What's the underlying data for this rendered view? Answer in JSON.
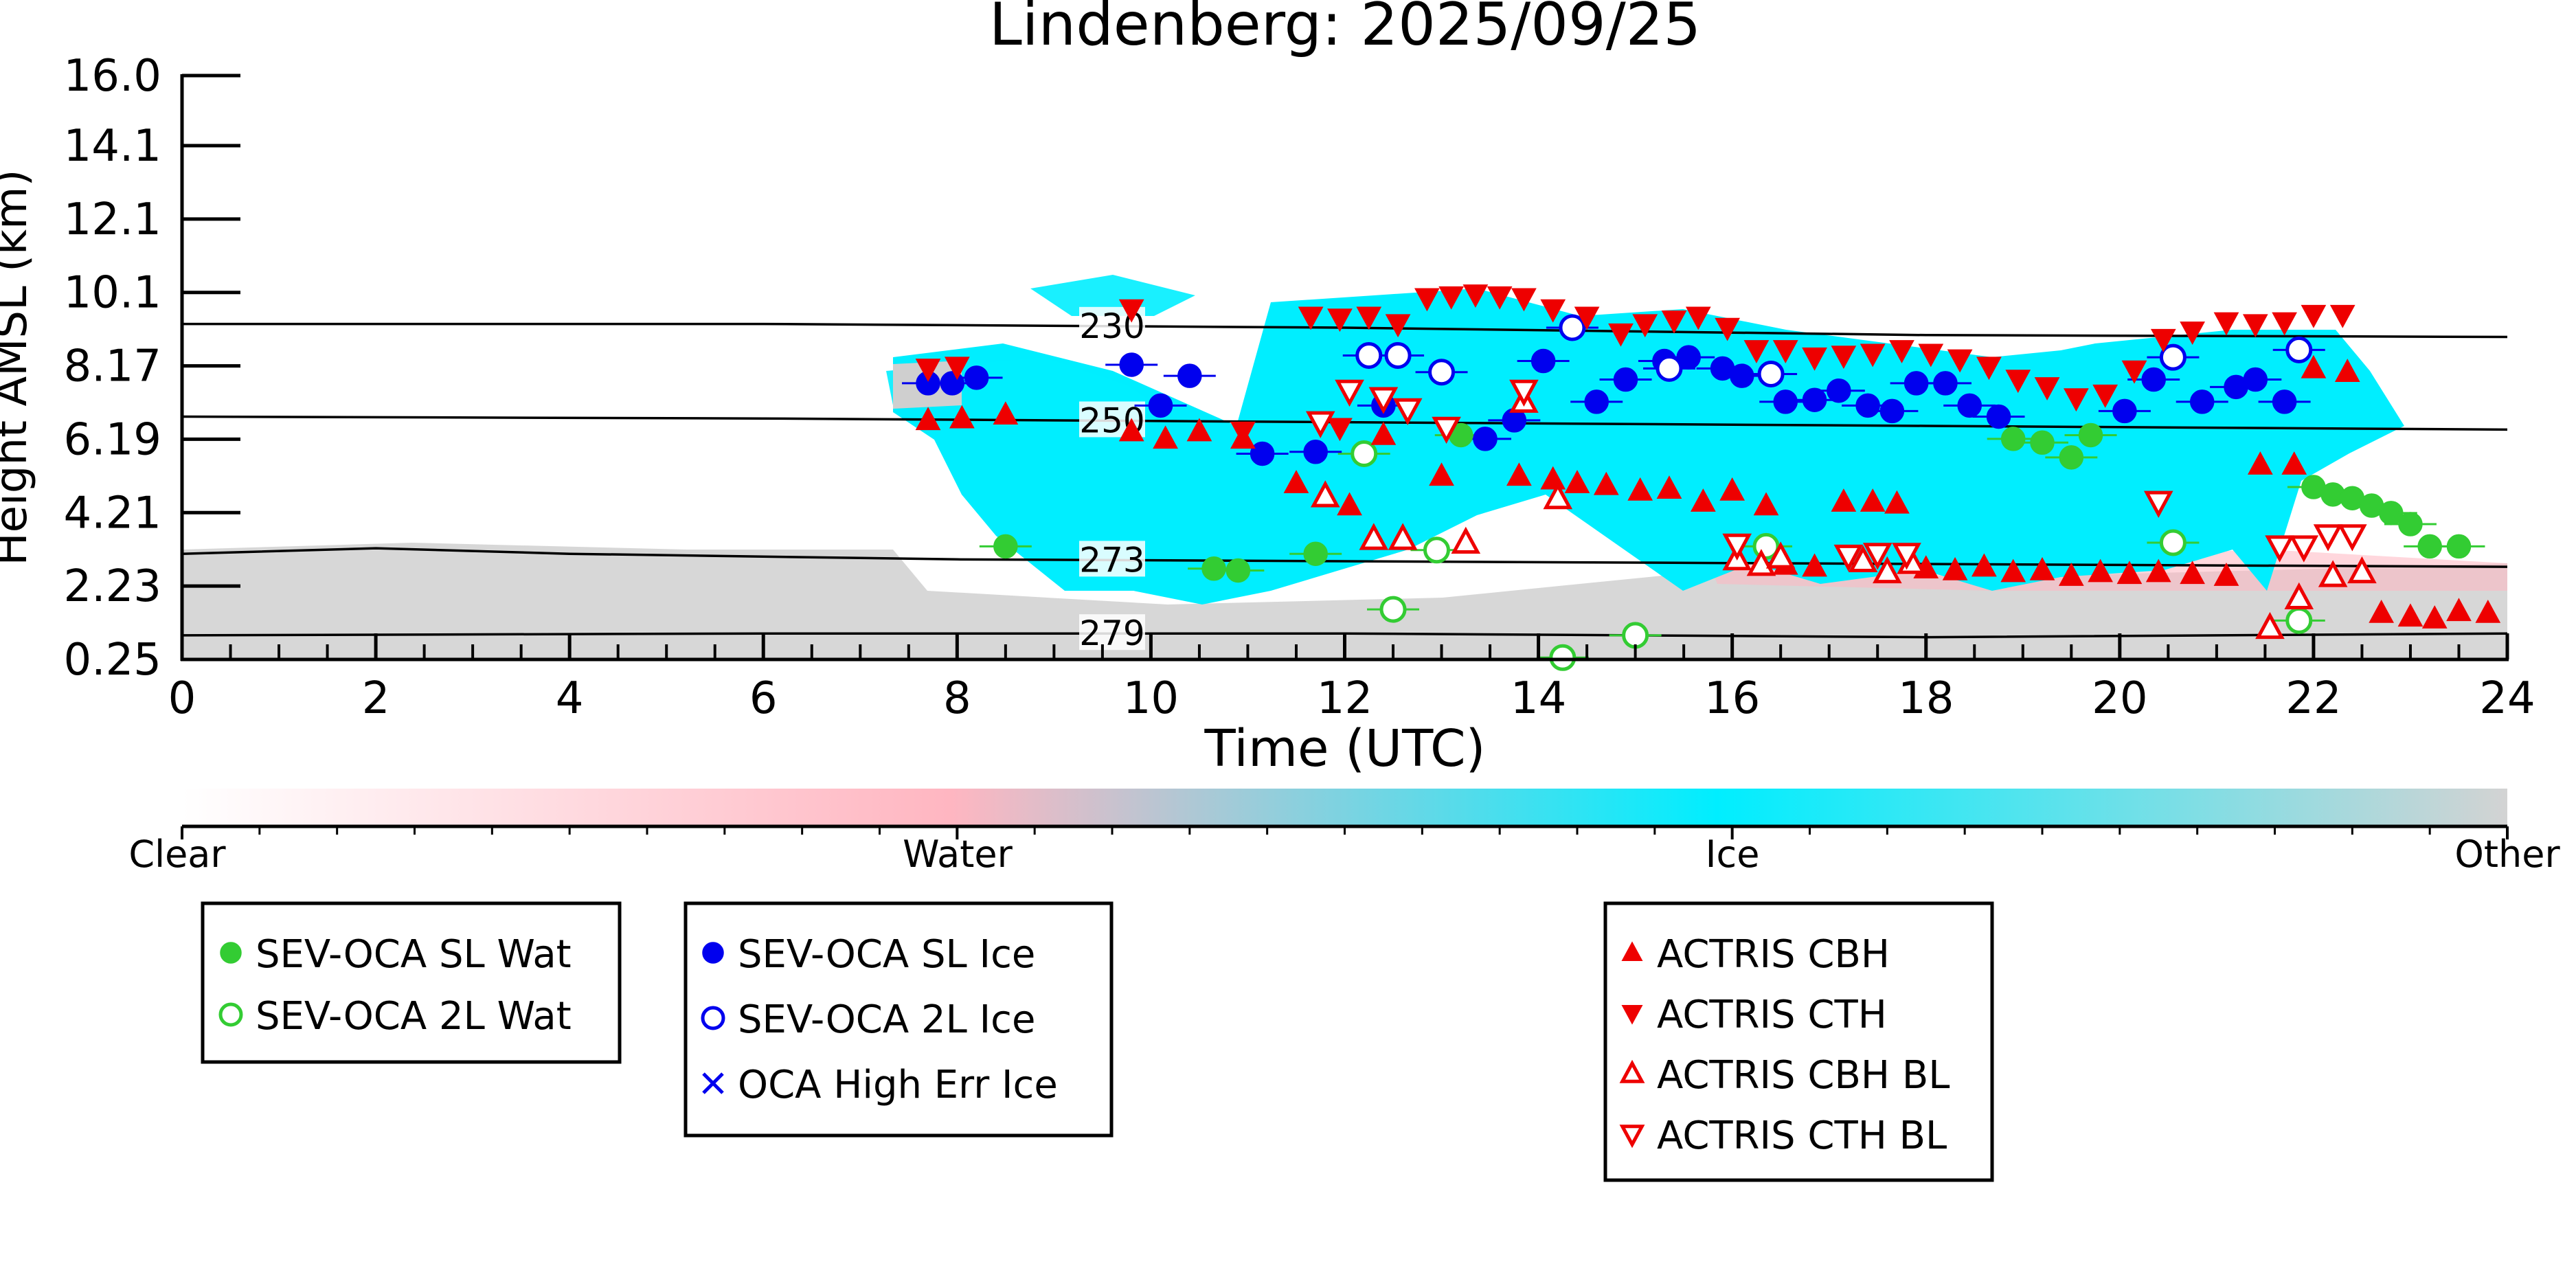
{
  "chart_data": {
    "type": "scatter",
    "title": "Lindenberg: 2025/09/25",
    "xlabel": "Time (UTC)",
    "ylabel": "Height AMSL (km)",
    "xlim": [
      0,
      24
    ],
    "ylim": [
      0.25,
      16.0
    ],
    "x_ticks": [
      "0",
      "2",
      "4",
      "6",
      "8",
      "10",
      "12",
      "14",
      "16",
      "18",
      "20",
      "22",
      "24"
    ],
    "y_ticks": [
      "0.25",
      "2.23",
      "4.21",
      "6.19",
      "8.17",
      "10.1",
      "12.1",
      "14.1",
      "16.0"
    ],
    "y_tick_values": [
      0.25,
      2.23,
      4.21,
      6.19,
      8.17,
      10.15,
      12.13,
      14.11,
      16.0
    ],
    "grid": false,
    "temperature_contours": [
      {
        "label": "230",
        "label_x": 9.6,
        "points": [
          [
            0,
            9.3
          ],
          [
            6,
            9.3
          ],
          [
            12,
            9.2
          ],
          [
            18,
            9.0
          ],
          [
            24,
            8.95
          ]
        ]
      },
      {
        "label": "250",
        "label_x": 9.6,
        "points": [
          [
            0,
            6.8
          ],
          [
            6,
            6.75
          ],
          [
            12,
            6.65
          ],
          [
            18,
            6.55
          ],
          [
            24,
            6.45
          ]
        ]
      },
      {
        "label": "273",
        "label_x": 9.6,
        "points": [
          [
            0,
            3.1
          ],
          [
            2,
            3.25
          ],
          [
            4,
            3.1
          ],
          [
            8,
            2.95
          ],
          [
            12,
            2.9
          ],
          [
            16,
            2.85
          ],
          [
            20,
            2.8
          ],
          [
            24,
            2.75
          ]
        ]
      },
      {
        "label": "279",
        "label_x": 9.6,
        "points": [
          [
            0,
            0.9
          ],
          [
            6,
            0.95
          ],
          [
            12,
            0.95
          ],
          [
            18,
            0.85
          ],
          [
            24,
            0.95
          ]
        ]
      }
    ],
    "colorbar": {
      "labels": [
        "Clear",
        "Water",
        "Ice",
        "Other"
      ],
      "stops": [
        "#ffffff",
        "#ffb6c1",
        "#00eeff",
        "#d3d3d3"
      ]
    },
    "series": [
      {
        "name": "SEV-OCA SL Wat",
        "marker": "circle-filled",
        "color": "#33cc33",
        "points": [
          [
            8.5,
            3.3
          ],
          [
            10.65,
            2.7
          ],
          [
            10.9,
            2.65
          ],
          [
            11.7,
            3.1
          ],
          [
            13.2,
            6.3
          ],
          [
            18.9,
            6.2
          ],
          [
            19.2,
            6.1
          ],
          [
            19.5,
            5.7
          ],
          [
            19.7,
            6.3
          ],
          [
            22.0,
            4.9
          ],
          [
            22.2,
            4.7
          ],
          [
            22.4,
            4.6
          ],
          [
            22.6,
            4.4
          ],
          [
            22.8,
            4.2
          ],
          [
            23.0,
            3.9
          ],
          [
            23.2,
            3.3
          ],
          [
            23.5,
            3.3
          ]
        ]
      },
      {
        "name": "SEV-OCA 2L Wat",
        "marker": "circle-open",
        "color": "#33cc33",
        "points": [
          [
            12.2,
            5.8
          ],
          [
            12.5,
            1.6
          ],
          [
            12.95,
            3.2
          ],
          [
            14.25,
            0.3
          ],
          [
            15.0,
            0.9
          ],
          [
            16.35,
            3.3
          ],
          [
            20.55,
            3.4
          ],
          [
            21.85,
            1.3
          ]
        ]
      },
      {
        "name": "SEV-OCA SL Ice",
        "marker": "circle-filled",
        "color": "#0000ee",
        "points": [
          [
            7.7,
            7.7
          ],
          [
            7.95,
            7.7
          ],
          [
            8.2,
            7.85
          ],
          [
            9.8,
            8.2
          ],
          [
            10.1,
            7.1
          ],
          [
            10.4,
            7.9
          ],
          [
            11.15,
            5.8
          ],
          [
            11.7,
            5.85
          ],
          [
            12.4,
            7.1
          ],
          [
            13.45,
            6.2
          ],
          [
            13.75,
            6.7
          ],
          [
            14.05,
            8.3
          ],
          [
            14.6,
            7.2
          ],
          [
            14.9,
            7.8
          ],
          [
            15.3,
            8.3
          ],
          [
            15.55,
            8.4
          ],
          [
            15.9,
            8.1
          ],
          [
            16.1,
            7.9
          ],
          [
            16.55,
            7.2
          ],
          [
            16.85,
            7.25
          ],
          [
            17.1,
            7.5
          ],
          [
            17.4,
            7.1
          ],
          [
            17.65,
            6.95
          ],
          [
            17.9,
            7.7
          ],
          [
            18.2,
            7.7
          ],
          [
            18.45,
            7.1
          ],
          [
            18.75,
            6.8
          ],
          [
            20.05,
            6.95
          ],
          [
            20.35,
            7.8
          ],
          [
            20.85,
            7.2
          ],
          [
            21.2,
            7.6
          ],
          [
            21.4,
            7.8
          ],
          [
            21.7,
            7.2
          ]
        ]
      },
      {
        "name": "SEV-OCA 2L Ice",
        "marker": "circle-open",
        "color": "#0000ee",
        "points": [
          [
            12.25,
            8.45
          ],
          [
            12.55,
            8.45
          ],
          [
            13.0,
            8.0
          ],
          [
            14.35,
            9.2
          ],
          [
            15.35,
            8.1
          ],
          [
            16.4,
            7.95
          ],
          [
            20.55,
            8.4
          ],
          [
            21.85,
            8.6
          ]
        ]
      },
      {
        "name": "OCA High Err Ice",
        "marker": "x",
        "color": "#0000ee",
        "points": []
      },
      {
        "name": "ACTRIS CBH",
        "marker": "triangle-up-filled",
        "color": "#ee0000",
        "points": [
          [
            7.7,
            6.7
          ],
          [
            8.05,
            6.75
          ],
          [
            8.5,
            6.85
          ],
          [
            9.8,
            6.4
          ],
          [
            10.15,
            6.2
          ],
          [
            10.5,
            6.4
          ],
          [
            10.95,
            6.2
          ],
          [
            11.5,
            5.0
          ],
          [
            11.8,
            4.7
          ],
          [
            12.05,
            4.4
          ],
          [
            12.4,
            6.3
          ],
          [
            13.0,
            5.2
          ],
          [
            13.8,
            5.2
          ],
          [
            14.15,
            5.1
          ],
          [
            14.4,
            5.0
          ],
          [
            14.7,
            4.95
          ],
          [
            15.05,
            4.8
          ],
          [
            15.35,
            4.85
          ],
          [
            15.7,
            4.5
          ],
          [
            16.0,
            4.8
          ],
          [
            16.35,
            4.4
          ],
          [
            16.55,
            2.8
          ],
          [
            16.85,
            2.75
          ],
          [
            17.15,
            4.5
          ],
          [
            17.45,
            4.5
          ],
          [
            17.7,
            4.45
          ],
          [
            18.0,
            2.7
          ],
          [
            18.3,
            2.65
          ],
          [
            18.6,
            2.75
          ],
          [
            18.9,
            2.6
          ],
          [
            19.2,
            2.65
          ],
          [
            19.5,
            2.5
          ],
          [
            19.8,
            2.6
          ],
          [
            20.1,
            2.55
          ],
          [
            20.4,
            2.6
          ],
          [
            20.75,
            2.55
          ],
          [
            21.1,
            2.5
          ],
          [
            21.45,
            5.5
          ],
          [
            21.8,
            5.5
          ],
          [
            22.0,
            8.1
          ],
          [
            22.35,
            8.0
          ],
          [
            22.7,
            1.5
          ],
          [
            23.0,
            1.4
          ],
          [
            23.25,
            1.35
          ],
          [
            23.5,
            1.55
          ],
          [
            23.8,
            1.5
          ]
        ]
      },
      {
        "name": "ACTRIS CTH",
        "marker": "triangle-down-filled",
        "color": "#ee0000",
        "points": [
          [
            7.7,
            8.1
          ],
          [
            8.0,
            8.15
          ],
          [
            9.8,
            9.7
          ],
          [
            10.95,
            6.4
          ],
          [
            11.95,
            6.5
          ],
          [
            11.65,
            9.5
          ],
          [
            11.95,
            9.45
          ],
          [
            12.25,
            9.5
          ],
          [
            12.55,
            9.3
          ],
          [
            12.85,
            10.0
          ],
          [
            13.1,
            10.05
          ],
          [
            13.35,
            10.1
          ],
          [
            13.6,
            10.05
          ],
          [
            13.85,
            10.0
          ],
          [
            14.15,
            9.7
          ],
          [
            14.5,
            9.5
          ],
          [
            14.85,
            9.05
          ],
          [
            15.1,
            9.3
          ],
          [
            15.4,
            9.4
          ],
          [
            15.65,
            9.5
          ],
          [
            15.95,
            9.2
          ],
          [
            16.25,
            8.6
          ],
          [
            16.55,
            8.6
          ],
          [
            16.85,
            8.4
          ],
          [
            17.15,
            8.45
          ],
          [
            17.45,
            8.5
          ],
          [
            17.75,
            8.6
          ],
          [
            18.05,
            8.5
          ],
          [
            18.35,
            8.35
          ],
          [
            18.65,
            8.15
          ],
          [
            18.95,
            7.8
          ],
          [
            19.25,
            7.6
          ],
          [
            19.55,
            7.3
          ],
          [
            19.85,
            7.4
          ],
          [
            20.15,
            8.05
          ],
          [
            20.45,
            8.9
          ],
          [
            20.75,
            9.1
          ],
          [
            21.1,
            9.35
          ],
          [
            21.4,
            9.3
          ],
          [
            21.7,
            9.35
          ],
          [
            22.0,
            9.55
          ],
          [
            22.3,
            9.55
          ]
        ]
      },
      {
        "name": "ACTRIS CBH BL",
        "marker": "triangle-up-open",
        "color": "#ee0000",
        "points": [
          [
            11.8,
            4.65
          ],
          [
            12.3,
            3.5
          ],
          [
            12.6,
            3.5
          ],
          [
            13.25,
            3.4
          ],
          [
            13.85,
            7.2
          ],
          [
            14.2,
            4.6
          ],
          [
            16.05,
            2.95
          ],
          [
            16.3,
            2.8
          ],
          [
            16.5,
            3.0
          ],
          [
            17.35,
            2.9
          ],
          [
            17.6,
            2.6
          ],
          [
            17.85,
            2.85
          ],
          [
            21.55,
            1.1
          ],
          [
            21.85,
            1.9
          ],
          [
            22.2,
            2.5
          ],
          [
            22.5,
            2.6
          ]
        ]
      },
      {
        "name": "ACTRIS CTH BL",
        "marker": "triangle-down-open",
        "color": "#ee0000",
        "points": [
          [
            11.75,
            6.65
          ],
          [
            12.05,
            7.5
          ],
          [
            12.4,
            7.3
          ],
          [
            12.65,
            7.0
          ],
          [
            13.05,
            6.5
          ],
          [
            13.85,
            7.5
          ],
          [
            16.05,
            3.35
          ],
          [
            17.2,
            3.05
          ],
          [
            17.5,
            3.1
          ],
          [
            17.8,
            3.1
          ],
          [
            20.4,
            4.5
          ],
          [
            21.65,
            3.3
          ],
          [
            21.9,
            3.3
          ],
          [
            22.15,
            3.6
          ],
          [
            22.4,
            3.6
          ]
        ]
      }
    ],
    "legends": [
      {
        "name": "legend-water",
        "entries": [
          "SEV-OCA SL Wat",
          "SEV-OCA 2L Wat"
        ]
      },
      {
        "name": "legend-ice",
        "entries": [
          "SEV-OCA SL Ice",
          "SEV-OCA 2L Ice",
          "OCA High Err Ice"
        ]
      },
      {
        "name": "legend-actris",
        "entries": [
          "ACTRIS CBH",
          "ACTRIS CTH",
          "ACTRIS CBH BL",
          "ACTRIS CTH BL"
        ]
      }
    ]
  }
}
